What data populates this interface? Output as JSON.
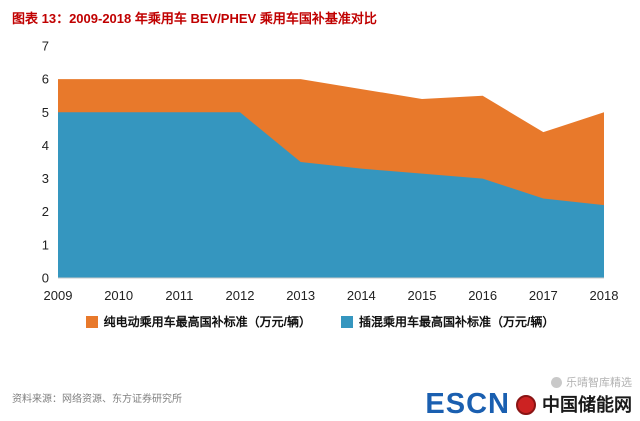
{
  "header": {
    "title": "图表 13：2009-2018 年乘用车 BEV/PHEV 乘用车国补基准对比"
  },
  "chart_data": {
    "type": "area",
    "title": "图表 13：2009-2018 年乘用车 BEV/PHEV 乘用车国补基准对比",
    "x": [
      2009,
      2010,
      2011,
      2012,
      2013,
      2014,
      2015,
      2016,
      2017,
      2018
    ],
    "series": [
      {
        "name": "纯电动乘用车最高国补标准（万元/辆）",
        "color": "#E8792B",
        "values": [
          6,
          6,
          6,
          6,
          6,
          5.7,
          5.4,
          5.5,
          4.4,
          5
        ]
      },
      {
        "name": "插混乘用车最高国补标准（万元/辆）",
        "color": "#3596BF",
        "values": [
          5,
          5,
          5,
          5,
          3.5,
          3.3,
          3.15,
          3,
          2.4,
          2.2
        ]
      }
    ],
    "ylim": [
      0,
      7
    ],
    "yticks": [
      0,
      1,
      2,
      3,
      4,
      5,
      6,
      7
    ],
    "grid": false,
    "legend_position": "bottom",
    "overlap": true
  },
  "footer": {
    "source": "资料来源：网络资源、东方证券研究所"
  },
  "watermark": {
    "text": "乐晴智库精选"
  },
  "logo": {
    "escn": "ESCN",
    "site": "中国储能网"
  }
}
